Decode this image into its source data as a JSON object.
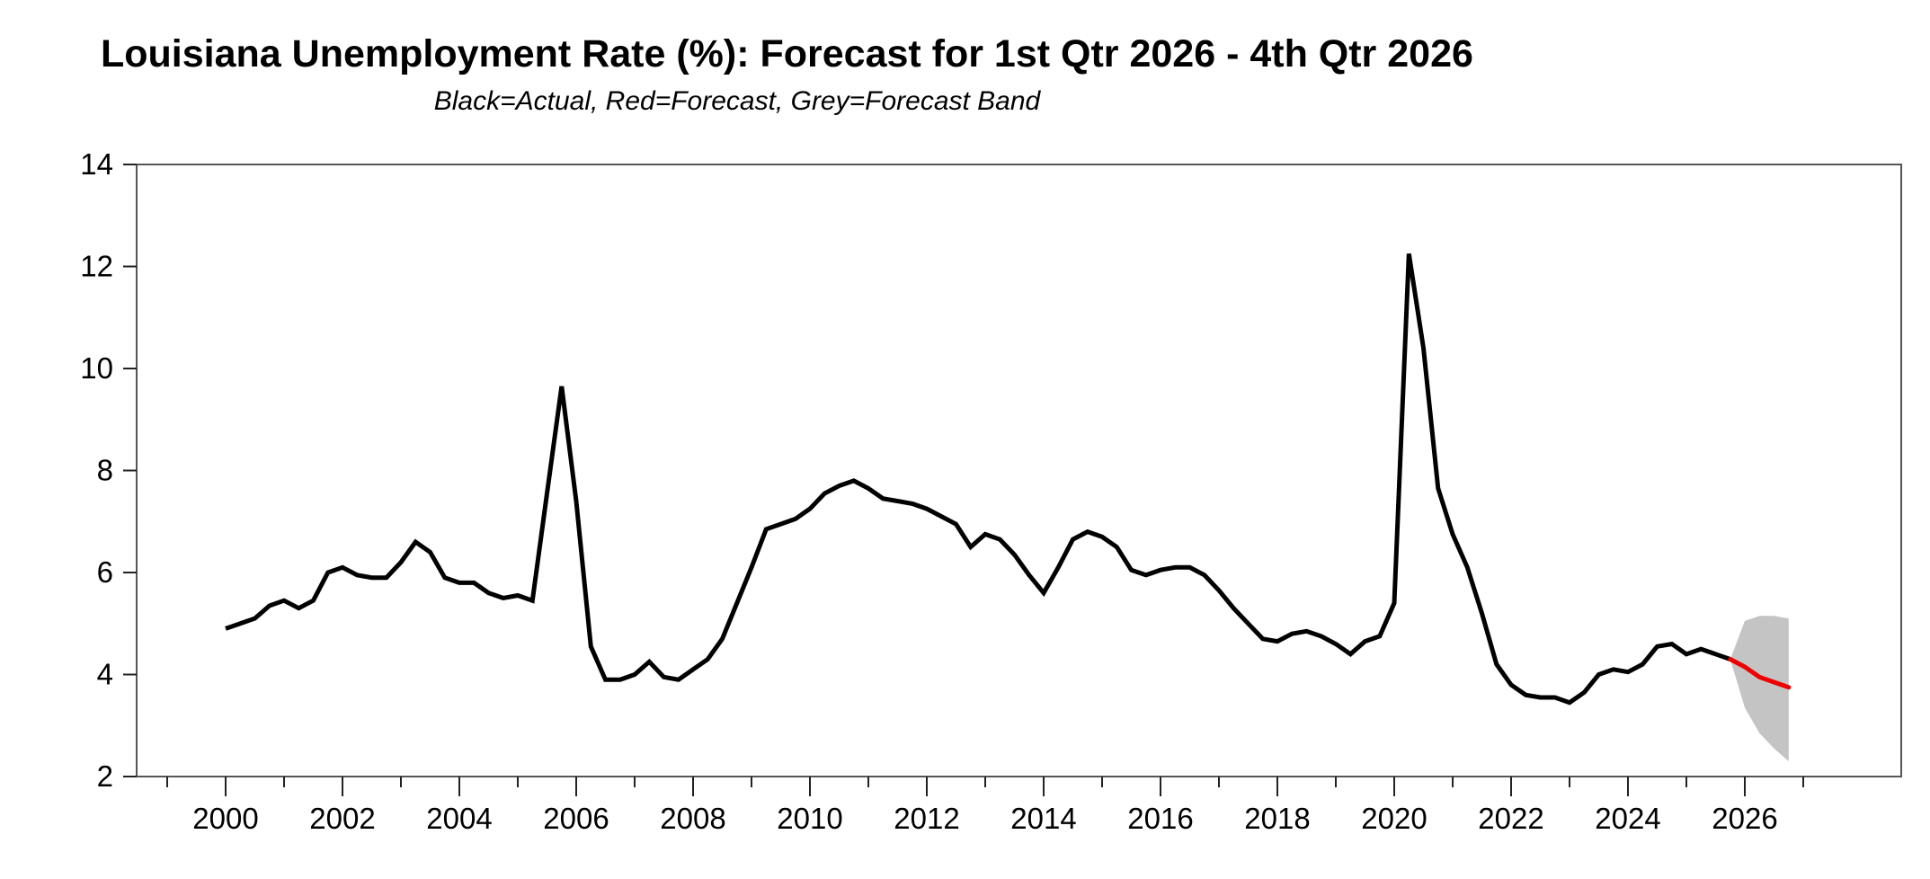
{
  "title": "Louisiana Unemployment Rate (%): Forecast for 1st Qtr 2026 - 4th Qtr 2026",
  "subtitle": "Black=Actual, Red=Forecast, Grey=Forecast Band",
  "colors": {
    "background": "#ffffff",
    "actual_line": "#000000",
    "forecast_line": "#ee0000",
    "forecast_band": "#c4c4c4",
    "axis": "#555555",
    "tick": "#222222",
    "label": "#000000"
  },
  "chart_data": {
    "type": "line",
    "title": "Louisiana Unemployment Rate (%): Forecast for 1st Qtr 2026 - 4th Qtr 2026",
    "subtitle": "Black=Actual, Red=Forecast, Grey=Forecast Band",
    "frequency": "quarterly",
    "x_axis": {
      "major_ticks": [
        2000,
        2002,
        2004,
        2006,
        2008,
        2010,
        2012,
        2014,
        2016,
        2018,
        2020,
        2022,
        2024,
        2026
      ],
      "minor_ticks": [
        1999,
        2001,
        2003,
        2005,
        2007,
        2009,
        2011,
        2013,
        2015,
        2017,
        2019,
        2021,
        2023,
        2025,
        2027
      ],
      "range_years": [
        1998.48,
        2028.68
      ]
    },
    "y_axis": {
      "ticks": [
        2,
        4,
        6,
        8,
        10,
        12,
        14
      ],
      "range": [
        2,
        14
      ]
    },
    "legend_note": "Black=Actual, Red=Forecast, Grey=Forecast Band",
    "series": [
      {
        "name": "Actual",
        "color": "#000000",
        "start": "2000Q1",
        "values": [
          4.9,
          5.0,
          5.1,
          5.35,
          5.45,
          5.3,
          5.45,
          6.0,
          6.1,
          5.95,
          5.9,
          5.9,
          6.2,
          6.6,
          6.4,
          5.9,
          5.8,
          5.8,
          5.6,
          5.5,
          5.55,
          5.45,
          7.55,
          9.65,
          7.4,
          4.55,
          3.9,
          3.9,
          4.0,
          4.25,
          3.95,
          3.9,
          4.1,
          4.3,
          4.7,
          5.4,
          6.1,
          6.85,
          6.95,
          7.05,
          7.25,
          7.55,
          7.7,
          7.8,
          7.65,
          7.45,
          7.4,
          7.35,
          7.25,
          7.1,
          6.95,
          6.5,
          6.75,
          6.65,
          6.35,
          5.95,
          5.6,
          6.1,
          6.65,
          6.8,
          6.7,
          6.5,
          6.05,
          5.95,
          6.05,
          6.1,
          6.1,
          5.95,
          5.65,
          5.3,
          5.0,
          4.7,
          4.65,
          4.8,
          4.85,
          4.75,
          4.6,
          4.4,
          4.65,
          4.75,
          5.4,
          12.25,
          10.4,
          7.65,
          6.75,
          6.1,
          5.2,
          4.2,
          3.8,
          3.6,
          3.55,
          3.55,
          3.45,
          3.65,
          4.0,
          4.1,
          4.05,
          4.2,
          4.55,
          4.6,
          4.4,
          4.5,
          4.4,
          4.3
        ]
      },
      {
        "name": "Forecast",
        "color": "#ee0000",
        "start": "2026Q1",
        "values": [
          4.15,
          3.95,
          3.85,
          3.75
        ]
      },
      {
        "name": "Forecast Band",
        "color": "#c4c4c4",
        "start": "2026Q1",
        "upper": [
          5.05,
          5.15,
          5.15,
          5.1
        ],
        "lower": [
          3.35,
          2.85,
          2.55,
          2.3
        ]
      }
    ]
  }
}
